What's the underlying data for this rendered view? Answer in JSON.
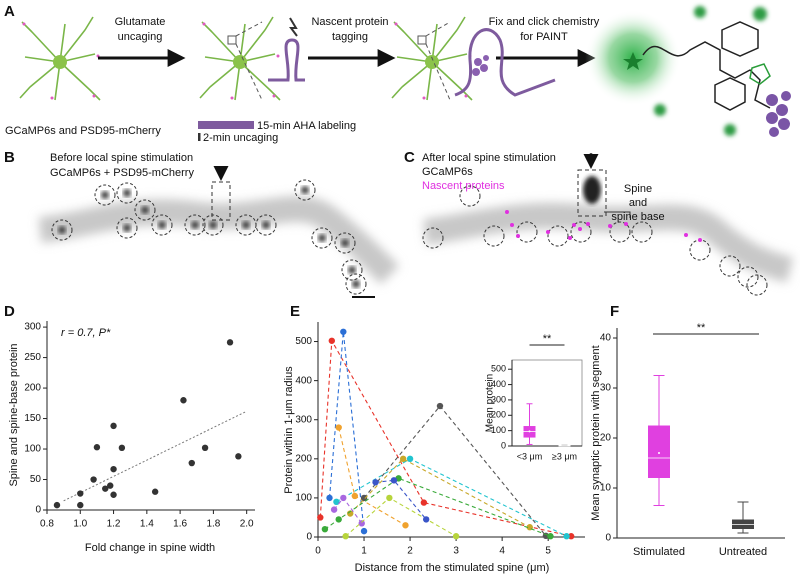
{
  "panels": {
    "A": {
      "letter": "A",
      "step1": [
        "Glutamate",
        "uncaging"
      ],
      "step2": [
        "Nascent protein",
        "tagging"
      ],
      "step3": [
        "Fix and click chemistry",
        "for PAINT"
      ],
      "cell_label": "GCaMP6s and PSD95-mCherry",
      "bar_long": "15-min AHA labeling",
      "bar_short": "2-min uncaging"
    },
    "B": {
      "letter": "B",
      "title": "Before local spine stimulation",
      "subtitle": "GCaMP6s + PSD95-mCherry"
    },
    "C": {
      "letter": "C",
      "title": "After local spine stimulation",
      "subtitle": "GCaMP6s",
      "subtitle2": "Nascent proteins",
      "callout": [
        "Spine",
        "and",
        "spine base"
      ]
    }
  },
  "chart_data": [
    {
      "type": "scatter",
      "letter": "D",
      "annotation": "r = 0.7, P*",
      "x_label": "Fold change in spine width",
      "y_label": "Spine and spine-base protein",
      "x": [
        0.86,
        1.0,
        1.0,
        1.08,
        1.1,
        1.15,
        1.18,
        1.2,
        1.2,
        1.2,
        1.25,
        1.45,
        1.62,
        1.67,
        1.75,
        1.9,
        1.95
      ],
      "values": [
        8,
        27,
        8,
        50,
        103,
        35,
        40,
        25,
        67,
        138,
        102,
        30,
        180,
        77,
        102,
        275,
        88
      ],
      "color": "#333333",
      "fit_line": {
        "x": [
          0.9,
          2.0
        ],
        "values": [
          15,
          162
        ]
      },
      "xlim": [
        0.8,
        2.05
      ],
      "xticks": [
        0.8,
        {
          "value": 1,
          "label": "1.0"
        },
        1.2,
        1.4,
        1.6,
        1.8,
        {
          "value": 2,
          "label": "2.0"
        }
      ],
      "ylim": [
        0,
        310
      ],
      "yticks": [
        0,
        50,
        100,
        150,
        200,
        250,
        300
      ]
    },
    {
      "type": "line",
      "letter": "E",
      "x_label": "Distance from the stimulated spine (μm)",
      "y_label": "Protein within 1-μm radius",
      "series": [
        {
          "color": "#e8332a",
          "x": [
            0.05,
            0.3,
            2.3,
            5.5
          ],
          "values": [
            50,
            502,
            88,
            2
          ]
        },
        {
          "color": "#2b6fd6",
          "x": [
            0.25,
            0.55,
            1.0
          ],
          "values": [
            100,
            525,
            15
          ]
        },
        {
          "color": "#f0a22e",
          "x": [
            0.45,
            0.8,
            1.9
          ],
          "values": [
            280,
            105,
            30
          ]
        },
        {
          "color": "#21c4cf",
          "x": [
            0.4,
            2.0,
            5.4
          ],
          "values": [
            90,
            200,
            2
          ]
        },
        {
          "color": "#555555",
          "x": [
            1.0,
            2.65,
            4.95
          ],
          "values": [
            100,
            335,
            3
          ]
        },
        {
          "color": "#c8a82a",
          "x": [
            0.7,
            1.85,
            4.6
          ],
          "values": [
            60,
            200,
            25
          ]
        },
        {
          "color": "#3aaa3a",
          "x": [
            0.15,
            0.45,
            1.75,
            5.05
          ],
          "values": [
            20,
            45,
            150,
            2
          ]
        },
        {
          "color": "#a867e0",
          "x": [
            0.35,
            0.55,
            0.95
          ],
          "values": [
            70,
            100,
            35
          ]
        },
        {
          "color": "#b7d43b",
          "x": [
            0.6,
            1.55,
            3.0
          ],
          "values": [
            2,
            100,
            2
          ]
        },
        {
          "color": "#3a55c8",
          "x": [
            1.25,
            1.65,
            2.35
          ],
          "values": [
            140,
            145,
            45
          ]
        }
      ],
      "xlim": [
        0,
        5.8
      ],
      "xticks": [
        0,
        1,
        2,
        3,
        4,
        5
      ],
      "ylim": [
        0,
        550
      ],
      "yticks": [
        0,
        100,
        200,
        300,
        400,
        500
      ]
    },
    {
      "type": "box",
      "y_label": "Mean protein",
      "annotation": "**",
      "categories": [
        "<3 μm",
        "≥3 μm"
      ],
      "boxes": [
        {
          "min": 10,
          "q1": 55,
          "median": 95,
          "q3": 130,
          "max": 275,
          "mean": 95
        },
        {
          "min": 0,
          "q1": 1,
          "median": 2,
          "q3": 3,
          "max": 5
        }
      ],
      "colors": [
        "#e040e0",
        "#999999"
      ],
      "ylim": [
        0,
        560
      ],
      "yticks": [
        0,
        100,
        200,
        300,
        400,
        500
      ]
    },
    {
      "type": "box",
      "letter": "F",
      "y_label": "Mean synaptic protein with segment",
      "annotation": "**",
      "categories": [
        "Stimulated",
        "Untreated"
      ],
      "boxes": [
        {
          "min": 6.5,
          "q1": 12,
          "median": 16,
          "q3": 22.5,
          "max": 32.5,
          "mean": 17
        },
        {
          "min": 1,
          "q1": 1.8,
          "median": 2.7,
          "q3": 3.7,
          "max": 7.2
        }
      ],
      "colors": [
        "#e040e0",
        "#444444"
      ],
      "ylim": [
        0,
        42
      ],
      "yticks": [
        0,
        10,
        20,
        30,
        40
      ]
    }
  ]
}
